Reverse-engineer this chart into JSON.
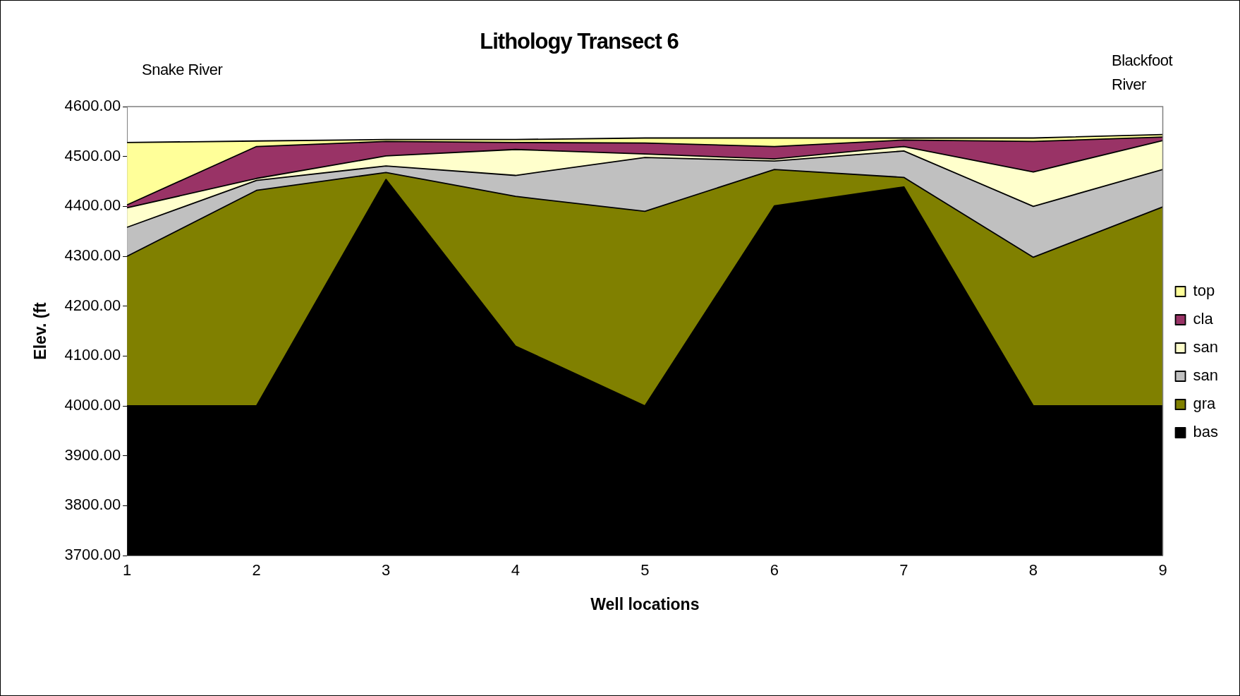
{
  "chart_data": {
    "type": "area",
    "title": "Lithology Transect 6",
    "xlabel": "Well locations",
    "ylabel": "Elev. (ft",
    "annotations": [
      "Snake River",
      "Blackfoot River"
    ],
    "categories": [
      "1",
      "2",
      "3",
      "4",
      "5",
      "6",
      "7",
      "8",
      "9"
    ],
    "series": [
      {
        "name": "bas",
        "color": "#000000",
        "values": [
          4000,
          4000,
          4454,
          4120,
          4000,
          4401,
          4439,
          4000,
          4000
        ]
      },
      {
        "name": "gra",
        "color": "#808000",
        "values": [
          4300,
          4432,
          4468,
          4420,
          4390,
          4474,
          4458,
          4298,
          4399
        ]
      },
      {
        "name": "san",
        "color": "#c0c0c0",
        "values": [
          4358,
          4452,
          4481,
          4462,
          4498,
          4491,
          4511,
          4400,
          4474
        ]
      },
      {
        "name": "san",
        "color": "#ffffcc",
        "values": [
          4397,
          4456,
          4501,
          4514,
          4505,
          4495,
          4520,
          4469,
          4532
        ]
      },
      {
        "name": "cla",
        "color": "#993366",
        "values": [
          4403,
          4520,
          4530,
          4528,
          4527,
          4520,
          4533,
          4530,
          4539
        ]
      },
      {
        "name": "top",
        "color": "#ffff99",
        "values": [
          4528,
          4531,
          4534,
          4534,
          4537,
          4537,
          4537,
          4537,
          4544
        ]
      }
    ],
    "ylim": [
      3700,
      4600
    ],
    "yticks": [
      {
        "value": 3700,
        "label": "3700.00"
      },
      {
        "value": 3800,
        "label": "3800.00"
      },
      {
        "value": 3900,
        "label": "3900.00"
      },
      {
        "value": 4000,
        "label": "4000.00"
      },
      {
        "value": 4100,
        "label": "4100.00"
      },
      {
        "value": 4200,
        "label": "4200.00"
      },
      {
        "value": 4300,
        "label": "4300.00"
      },
      {
        "value": 4400,
        "label": "4400.00"
      },
      {
        "value": 4500,
        "label": "4500.00"
      },
      {
        "value": 4600,
        "label": "4600.00"
      }
    ],
    "grid": false,
    "legend": "right",
    "marker": "none",
    "line_style": "solid"
  }
}
